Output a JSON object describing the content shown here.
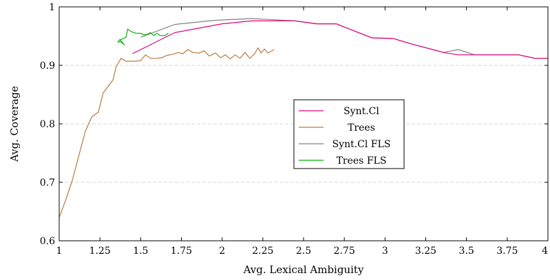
{
  "chart_data": {
    "type": "line",
    "title": "",
    "xlabel": "Avg. Lexical Ambiguity",
    "ylabel": "Avg. Coverage",
    "xlim": [
      1,
      4
    ],
    "ylim": [
      0.6,
      1
    ],
    "xticks": [
      1,
      1.25,
      1.5,
      1.75,
      2,
      2.25,
      2.5,
      2.75,
      3,
      3.25,
      3.5,
      3.75,
      4
    ],
    "xtick_labels": [
      "1",
      "1.25",
      "1.5",
      "1.75",
      "2",
      "2.25",
      "2.5",
      "2.75",
      "3",
      "3.25",
      "3.5",
      "3.75",
      "4"
    ],
    "yticks": [
      0.6,
      0.7,
      0.8,
      0.9,
      1
    ],
    "ytick_labels": [
      "0.6",
      "0.7",
      "0.8",
      "0.9",
      "1"
    ],
    "grid": "horizontal dashed",
    "legend_position": "center-right",
    "series": [
      {
        "name": "Synt.Cl",
        "color": "#e0007a",
        "points": [
          [
            1.45,
            0.92
          ],
          [
            1.71,
            0.956
          ],
          [
            2.0,
            0.971
          ],
          [
            2.18,
            0.976
          ],
          [
            2.45,
            0.976
          ],
          [
            2.58,
            0.971
          ],
          [
            2.7,
            0.971
          ],
          [
            2.92,
            0.947
          ],
          [
            3.05,
            0.946
          ],
          [
            3.17,
            0.936
          ],
          [
            3.36,
            0.922
          ],
          [
            3.45,
            0.918
          ],
          [
            3.6,
            0.918
          ],
          [
            3.82,
            0.918
          ],
          [
            3.92,
            0.912
          ],
          [
            4.0,
            0.912
          ]
        ]
      },
      {
        "name": "Trees",
        "color": "#b87a3c",
        "points": [
          [
            1.0,
            0.64
          ],
          [
            1.04,
            0.67
          ],
          [
            1.08,
            0.703
          ],
          [
            1.12,
            0.745
          ],
          [
            1.16,
            0.787
          ],
          [
            1.2,
            0.812
          ],
          [
            1.24,
            0.82
          ],
          [
            1.27,
            0.853
          ],
          [
            1.3,
            0.864
          ],
          [
            1.33,
            0.875
          ],
          [
            1.35,
            0.898
          ],
          [
            1.38,
            0.912
          ],
          [
            1.41,
            0.907
          ],
          [
            1.44,
            0.907
          ],
          [
            1.47,
            0.907
          ],
          [
            1.5,
            0.908
          ],
          [
            1.53,
            0.918
          ],
          [
            1.56,
            0.912
          ],
          [
            1.6,
            0.912
          ],
          [
            1.63,
            0.913
          ],
          [
            1.66,
            0.917
          ],
          [
            1.7,
            0.919
          ],
          [
            1.73,
            0.922
          ],
          [
            1.76,
            0.92
          ],
          [
            1.79,
            0.927
          ],
          [
            1.82,
            0.922
          ],
          [
            1.86,
            0.921
          ],
          [
            1.89,
            0.925
          ],
          [
            1.92,
            0.916
          ],
          [
            1.96,
            0.921
          ],
          [
            1.99,
            0.913
          ],
          [
            2.02,
            0.918
          ],
          [
            2.05,
            0.911
          ],
          [
            2.08,
            0.918
          ],
          [
            2.11,
            0.912
          ],
          [
            2.14,
            0.922
          ],
          [
            2.17,
            0.912
          ],
          [
            2.2,
            0.92
          ],
          [
            2.22,
            0.93
          ],
          [
            2.24,
            0.921
          ],
          [
            2.26,
            0.928
          ],
          [
            2.28,
            0.921
          ],
          [
            2.3,
            0.924
          ],
          [
            2.32,
            0.927
          ]
        ]
      },
      {
        "name": "Synt.Cl FLS",
        "color": "#808080",
        "points": [
          [
            1.5,
            0.948
          ],
          [
            1.71,
            0.97
          ],
          [
            1.95,
            0.977
          ],
          [
            2.18,
            0.98
          ],
          [
            2.45,
            0.976
          ],
          [
            2.58,
            0.971
          ],
          [
            2.7,
            0.971
          ],
          [
            2.92,
            0.947
          ],
          [
            3.05,
            0.946
          ],
          [
            3.17,
            0.936
          ],
          [
            3.36,
            0.922
          ],
          [
            3.45,
            0.927
          ],
          [
            3.55,
            0.918
          ],
          [
            3.82,
            0.918
          ],
          [
            3.92,
            0.912
          ],
          [
            4.0,
            0.912
          ]
        ]
      },
      {
        "name": "Trees FLS",
        "color": "#00b000",
        "points": [
          [
            1.67,
            0.955
          ],
          [
            1.65,
            0.951
          ],
          [
            1.62,
            0.951
          ],
          [
            1.6,
            0.955
          ],
          [
            1.58,
            0.951
          ],
          [
            1.56,
            0.956
          ],
          [
            1.54,
            0.953
          ],
          [
            1.52,
            0.952
          ],
          [
            1.5,
            0.955
          ],
          [
            1.47,
            0.955
          ],
          [
            1.44,
            0.958
          ],
          [
            1.42,
            0.962
          ],
          [
            1.41,
            0.948
          ],
          [
            1.37,
            0.943
          ],
          [
            1.36,
            0.94
          ],
          [
            1.38,
            0.94
          ],
          [
            1.4,
            0.935
          ],
          [
            1.37,
            0.945
          ]
        ]
      }
    ]
  }
}
